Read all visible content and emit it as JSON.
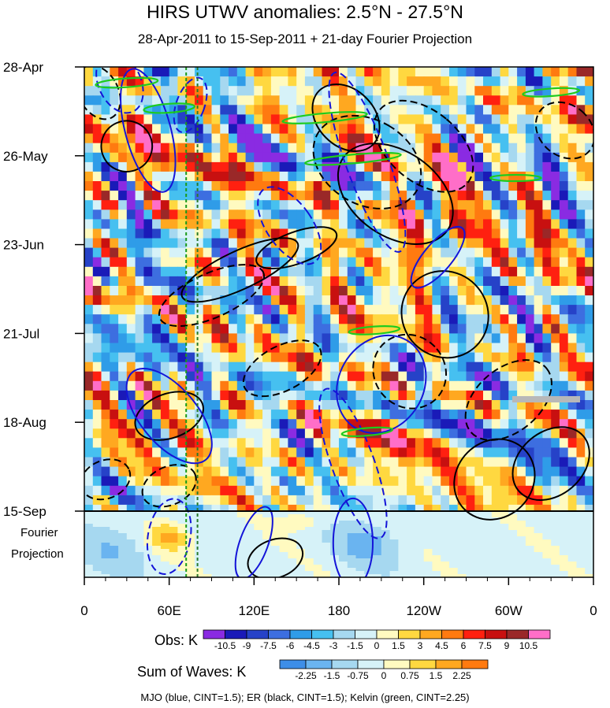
{
  "chart_data": {
    "type": "heatmap",
    "title": "HIRS UTWV anomalies: 2.5°N - 27.5°N",
    "subtitle": "28-Apr-2011 to 15-Sep-2011 + 21-day Fourier Projection",
    "x_ticks": [
      "0",
      "60E",
      "120E",
      "180",
      "120W",
      "60W",
      "0"
    ],
    "x_tick_values": [
      0,
      60,
      120,
      180,
      240,
      300,
      360
    ],
    "y_ticks": [
      "28-Apr",
      "26-May",
      "23-Jun",
      "21-Jul",
      "18-Aug",
      "15-Sep"
    ],
    "y_tick_days": [
      0,
      28,
      56,
      84,
      112,
      140
    ],
    "projection_days": 21,
    "projection_label": [
      "Fourier",
      "Projection"
    ],
    "obs_colorbar": {
      "label": "Obs: K",
      "levels": [
        "-10.5",
        "-9",
        "-7.5",
        "-6",
        "-4.5",
        "-3",
        "-1.5",
        "0",
        "1.5",
        "3",
        "4.5",
        "6",
        "7.5",
        "9",
        "10.5"
      ],
      "colors": [
        "#8a2be2",
        "#1a1ab8",
        "#2642c8",
        "#3d6ee0",
        "#2f9ce8",
        "#46c0f0",
        "#a6d8f0",
        "#d6f2f8",
        "#fffac0",
        "#ffd840",
        "#ffa820",
        "#ff7a10",
        "#ff2010",
        "#c81010",
        "#9a2828",
        "#ff6ec8"
      ]
    },
    "waves_colorbar": {
      "label": "Sum of Waves: K",
      "levels": [
        "-2.25",
        "-1.5",
        "-0.75",
        "0",
        "0.75",
        "1.5",
        "2.25"
      ],
      "colors": [
        "#3d8ee8",
        "#6ab4f0",
        "#a6d8f0",
        "#d6f2f8",
        "#fffac0",
        "#ffd840",
        "#ffa820",
        "#ff7a10"
      ]
    },
    "reference_longitudes": [
      72,
      80
    ],
    "contour_legend": "MJO (blue, CINT=1.5); ER (black, CINT=1.5); Kelvin (green, CINT=2.25)",
    "contour_series": [
      {
        "name": "MJO",
        "color": "#1414d8",
        "cint": 1.5
      },
      {
        "name": "ER",
        "color": "#000000",
        "cint": 1.5
      },
      {
        "name": "Kelvin",
        "color": "#1ecb1e",
        "cint": 2.25
      }
    ]
  }
}
